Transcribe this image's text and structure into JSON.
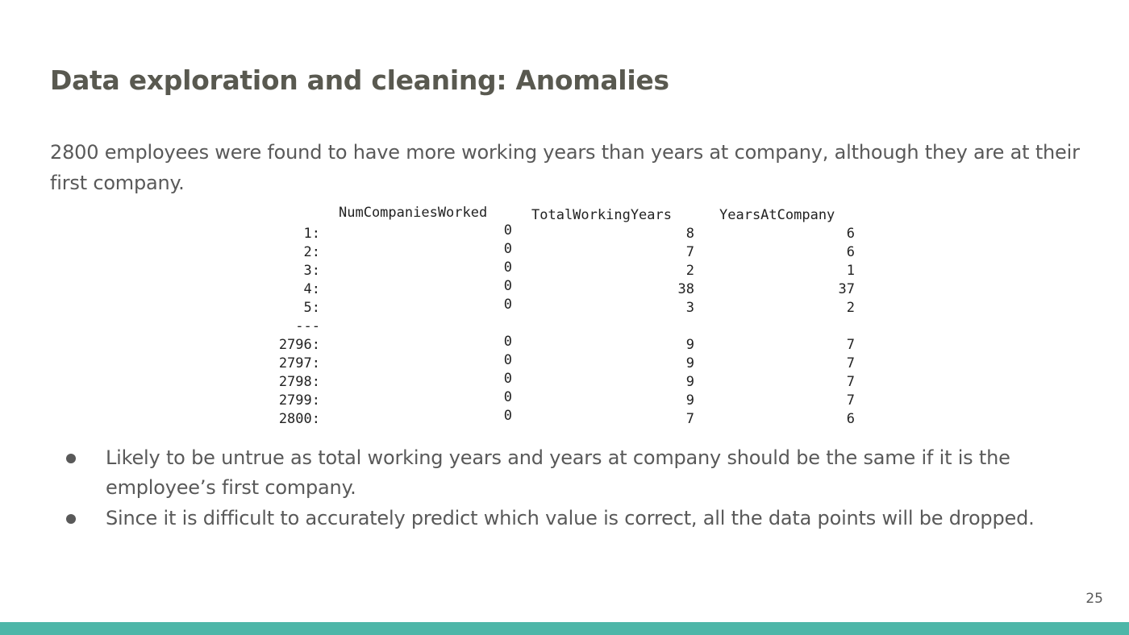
{
  "slide": {
    "title": "Data exploration and cleaning: Anomalies",
    "intro": "2800 employees were found to have more working years than years at company, although they are at their first company.",
    "table": {
      "headers": [
        "NumCompaniesWorked",
        "TotalWorkingYears",
        "YearsAtCompany"
      ],
      "separator": "---",
      "rows": [
        {
          "idx": "1:",
          "num": "0",
          "total": "8",
          "years": "6"
        },
        {
          "idx": "2:",
          "num": "0",
          "total": "7",
          "years": "6"
        },
        {
          "idx": "3:",
          "num": "0",
          "total": "2",
          "years": "1"
        },
        {
          "idx": "4:",
          "num": "0",
          "total": "38",
          "years": "37"
        },
        {
          "idx": "5:",
          "num": "0",
          "total": "3",
          "years": "2"
        },
        {
          "idx": "2796:",
          "num": "0",
          "total": "9",
          "years": "7"
        },
        {
          "idx": "2797:",
          "num": "0",
          "total": "9",
          "years": "7"
        },
        {
          "idx": "2798:",
          "num": "0",
          "total": "9",
          "years": "7"
        },
        {
          "idx": "2799:",
          "num": "0",
          "total": "9",
          "years": "7"
        },
        {
          "idx": "2800:",
          "num": "0",
          "total": "7",
          "years": "6"
        }
      ]
    },
    "bullets": [
      "Likely to be untrue as total working years and years at company should be the same if it is the employee’s first company.",
      "Since it is difficult to accurately predict which value is correct, all the data points will be dropped."
    ],
    "page_number": "25",
    "colors": {
      "title": "#595950",
      "body_text": "#595959",
      "footer_bar": "#4db6a8"
    }
  }
}
